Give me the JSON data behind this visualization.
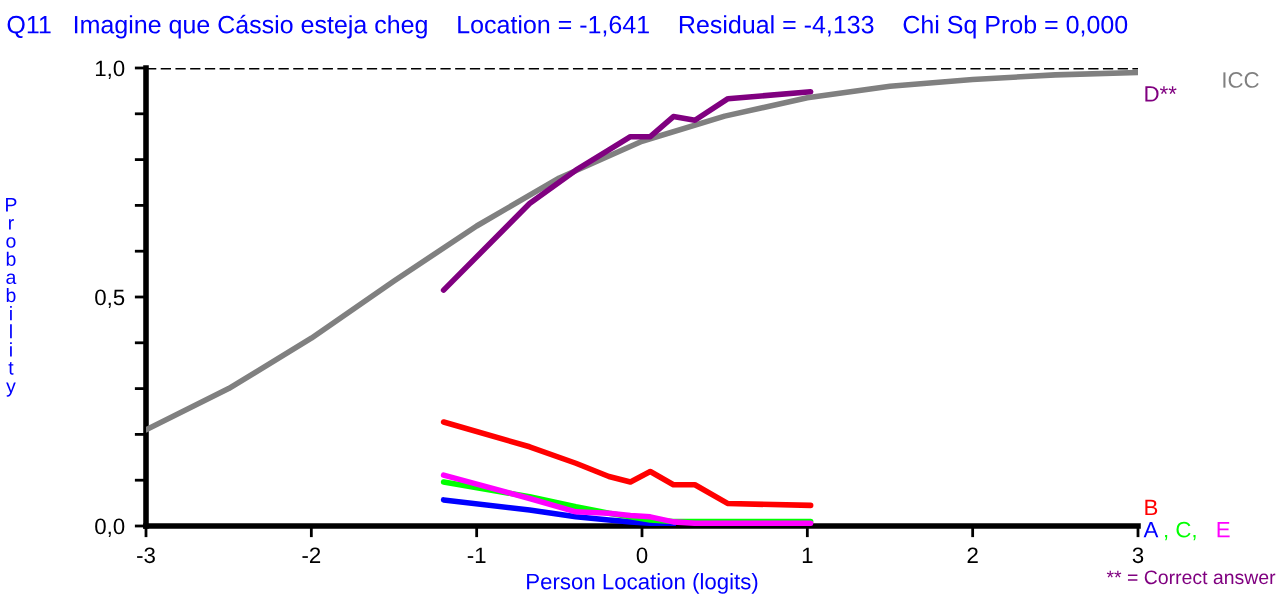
{
  "chart_data": {
    "type": "line",
    "title": "Q11   Imagine que Cássio esteja cheg    Location = -1,641    Residual = -4,133    Chi Sq Prob = 0,000",
    "xlabel": "Person Location (logits)",
    "ylabel": "Probability",
    "xlim": [
      -3,
      3
    ],
    "ylim": [
      0,
      1
    ],
    "xticks": [
      -3,
      -2,
      -1,
      0,
      1,
      2,
      3
    ],
    "yticks": [
      {
        "value": 0,
        "label": "0,0"
      },
      {
        "value": 0.1,
        "label": null
      },
      {
        "value": 0.2,
        "label": null
      },
      {
        "value": 0.3,
        "label": null
      },
      {
        "value": 0.4,
        "label": null
      },
      {
        "value": 0.5,
        "label": "0,5"
      },
      {
        "value": 0.6,
        "label": null
      },
      {
        "value": 0.7,
        "label": null
      },
      {
        "value": 0.8,
        "label": null
      },
      {
        "value": 0.9,
        "label": null
      },
      {
        "value": 1,
        "label": "1,0"
      }
    ],
    "grid": false,
    "legend": false,
    "marker": "none",
    "ref_lines": [
      {
        "axis": "y",
        "value": 1,
        "label": null,
        "color": "#000000",
        "line_style": "dashed"
      }
    ],
    "annotations": [
      "** = Correct answer"
    ],
    "series": [
      {
        "name": "ICC",
        "color": "#808080",
        "x": [
          -3,
          -2.5,
          -2,
          -1.5,
          -1,
          -0.5,
          0,
          0.5,
          1,
          1.5,
          2,
          2.5,
          3
        ],
        "values": [
          0.21,
          0.3,
          0.41,
          0.535,
          0.655,
          0.76,
          0.84,
          0.895,
          0.935,
          0.96,
          0.975,
          0.985,
          0.99
        ]
      },
      {
        "name": "D**",
        "color": "#800080",
        "x": [
          -1.2,
          -0.68,
          -0.4,
          -0.2,
          -0.07,
          0.05,
          0.19,
          0.32,
          0.52,
          1.02
        ],
        "values": [
          0.515,
          0.704,
          0.777,
          0.821,
          0.85,
          0.85,
          0.894,
          0.886,
          0.933,
          0.948
        ]
      },
      {
        "name": "B",
        "color": "#ff0000",
        "x": [
          -1.2,
          -0.68,
          -0.4,
          -0.2,
          -0.07,
          0.05,
          0.19,
          0.32,
          0.52,
          1.02
        ],
        "values": [
          0.227,
          0.173,
          0.137,
          0.108,
          0.096,
          0.119,
          0.09,
          0.09,
          0.049,
          0.045
        ]
      },
      {
        "name": "A",
        "color": "#0000ff",
        "x": [
          -1.2,
          -0.68,
          -0.4,
          -0.2,
          -0.07,
          0.05,
          0.19
        ],
        "values": [
          0.057,
          0.035,
          0.02,
          0.013,
          0.009,
          0.006,
          0.004
        ]
      },
      {
        "name": ", C,",
        "color": "#00ff00",
        "x": [
          -1.2,
          -0.68,
          -0.4,
          -0.2,
          -0.07,
          0.05,
          0.19,
          0.32,
          0.52,
          1.02
        ],
        "values": [
          0.096,
          0.064,
          0.042,
          0.028,
          0.02,
          0.013,
          0.01,
          0.01,
          0.01,
          0.01
        ]
      },
      {
        "name": "E",
        "color": "#ff00ff",
        "x": [
          -1.2,
          -0.68,
          -0.4,
          -0.2,
          -0.07,
          0.05,
          0.19,
          0.32,
          0.52,
          1.02
        ],
        "values": [
          0.111,
          0.06,
          0.031,
          0.028,
          0.023,
          0.02,
          0.009,
          0.006,
          0.006,
          0.006
        ]
      }
    ]
  }
}
